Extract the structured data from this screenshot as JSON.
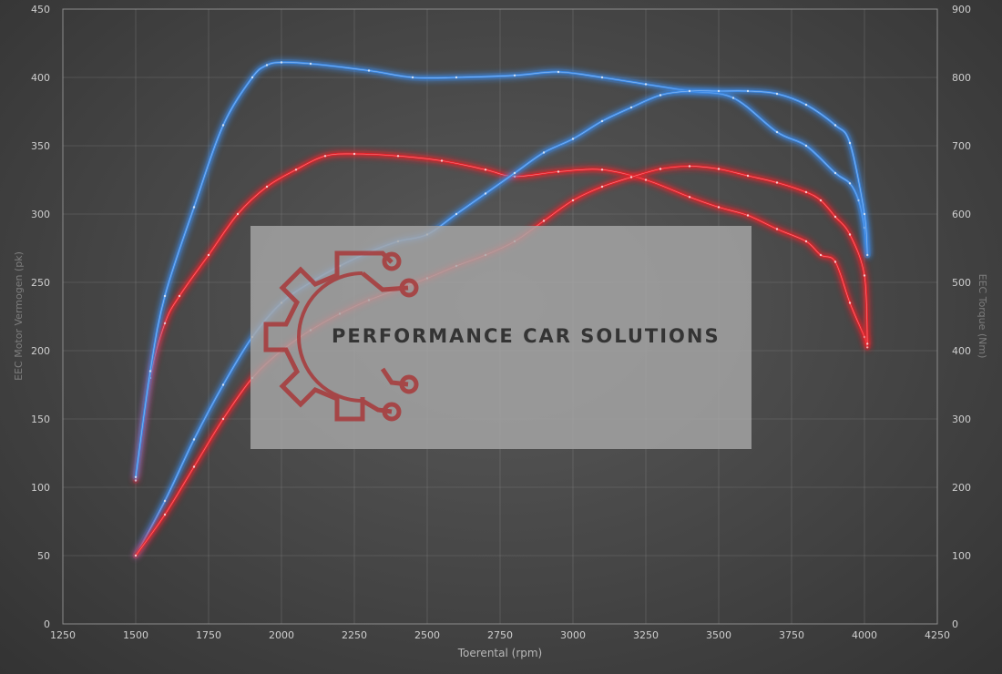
{
  "colors": {
    "stock": "#3d8ae6",
    "tuned": "#e8242a",
    "grid": "#8a8a8a",
    "text": "#cfcfcf",
    "watermark_box": "#a7a7a7",
    "watermark_logo": "#a8393a"
  },
  "watermark": {
    "text": "PERFORMANCE CAR SOLUTIONS",
    "logo": "gear-circuit-icon"
  },
  "chart_data": {
    "type": "line",
    "title": "",
    "xlabel": "Toerental (rpm)",
    "ylabel": "EEC Motor Vermogen (pk)",
    "y2label": "EEC Torque (Nm)",
    "xlim": [
      1250,
      4250
    ],
    "ylim": [
      0,
      450
    ],
    "y2lim": [
      0,
      900
    ],
    "x_ticks": [
      1250,
      1500,
      1750,
      2000,
      2250,
      2500,
      2750,
      3000,
      3250,
      3500,
      3750,
      4000,
      4250
    ],
    "y_ticks": [
      0,
      50,
      100,
      150,
      200,
      250,
      300,
      350,
      400,
      450
    ],
    "y2_ticks": [
      0,
      100,
      200,
      300,
      400,
      500,
      600,
      700,
      800,
      900
    ],
    "grid": true,
    "legend": "none",
    "series": [
      {
        "id": "tuned-torque",
        "axis": "y2",
        "color": "#e8242a",
        "x": [
          1500,
          1550,
          1600,
          1650,
          1750,
          1850,
          1950,
          2050,
          2150,
          2250,
          2400,
          2550,
          2700,
          2800,
          2950,
          3100,
          3250,
          3400,
          3500,
          3600,
          3700,
          3800,
          3850,
          3900,
          3950,
          4000,
          4010
        ],
        "y": [
          210,
          360,
          440,
          480,
          540,
          600,
          640,
          665,
          685,
          688,
          685,
          678,
          665,
          655,
          662,
          665,
          650,
          625,
          610,
          598,
          578,
          560,
          540,
          530,
          470,
          420,
          405
        ]
      },
      {
        "id": "stock-torque",
        "axis": "y2",
        "color": "#3d8ae6",
        "x": [
          1500,
          1550,
          1600,
          1700,
          1800,
          1900,
          1950,
          2000,
          2100,
          2300,
          2450,
          2600,
          2800,
          2950,
          3100,
          3250,
          3400,
          3550,
          3700,
          3800,
          3900,
          3950,
          3980,
          4000,
          4010
        ],
        "y": [
          215,
          370,
          480,
          610,
          730,
          800,
          818,
          822,
          820,
          810,
          800,
          800,
          803,
          808,
          800,
          790,
          780,
          770,
          720,
          700,
          660,
          645,
          620,
          580,
          540
        ]
      },
      {
        "id": "stock-power",
        "axis": "y",
        "color": "#3d8ae6",
        "x": [
          1500,
          1600,
          1700,
          1800,
          1900,
          2000,
          2100,
          2200,
          2300,
          2400,
          2500,
          2600,
          2700,
          2800,
          2900,
          3000,
          3100,
          3200,
          3300,
          3400,
          3500,
          3600,
          3700,
          3800,
          3900,
          3950,
          4000,
          4010
        ],
        "y": [
          50,
          90,
          135,
          175,
          210,
          235,
          250,
          262,
          272,
          280,
          285,
          300,
          315,
          330,
          345,
          355,
          368,
          378,
          387,
          390,
          390,
          390,
          388,
          380,
          365,
          352,
          300,
          270
        ]
      },
      {
        "id": "tuned-power",
        "axis": "y",
        "color": "#e8242a",
        "x": [
          1500,
          1600,
          1700,
          1800,
          1900,
          2000,
          2100,
          2200,
          2300,
          2400,
          2500,
          2600,
          2700,
          2800,
          2900,
          3000,
          3100,
          3200,
          3300,
          3400,
          3500,
          3600,
          3700,
          3800,
          3850,
          3900,
          3950,
          4000,
          4010
        ],
        "y": [
          50,
          80,
          115,
          150,
          180,
          200,
          215,
          227,
          237,
          245,
          253,
          262,
          270,
          280,
          295,
          310,
          320,
          327,
          333,
          335,
          333,
          328,
          323,
          316,
          310,
          298,
          285,
          255,
          205
        ]
      }
    ]
  }
}
